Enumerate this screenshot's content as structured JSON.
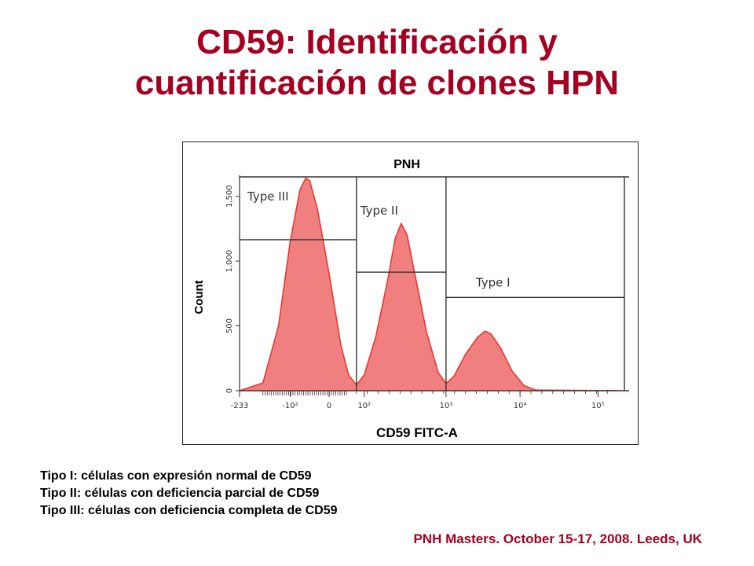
{
  "slide": {
    "title_line1": "CD59: Identificación y",
    "title_line2": "cuantificación de clones HPN",
    "captions": [
      "Tipo I: células con expresión normal de CD59",
      "Tipo II: células con deficiencia parcial de CD59",
      "Tipo III: células con deficiencia completa de CD59"
    ],
    "footer": "PNH Masters. October 15-17, 2008. Leeds, UK"
  },
  "colors": {
    "title": "#a50021",
    "histogram_fill": "#f08080",
    "histogram_line": "#e8382f",
    "gate_line": "#333333"
  },
  "chart_data": {
    "type": "area",
    "title": "PNH",
    "xlabel": "CD59 FITC-A",
    "ylabel": "Count",
    "xscale": "biexponential",
    "x_tick_labels": [
      "-233",
      "-10²",
      "0",
      "10²",
      "10³",
      "10⁴",
      "10⁵"
    ],
    "y_tick_labels": [
      "0",
      "500",
      "1,000",
      "1,500"
    ],
    "ylim": [
      0,
      1650
    ],
    "gates": [
      {
        "name": "Type III",
        "x_range": [
          "-233",
          "~10²·⁵"
        ]
      },
      {
        "name": "Type II",
        "x_range": [
          "~10²·⁵",
          "~10³·⁵"
        ]
      },
      {
        "name": "Type I",
        "x_range": [
          "~10³·⁵",
          "10⁵"
        ]
      }
    ],
    "series": [
      {
        "values_note": "peaks: Type III ~1600 near 10^1.5; Type II ~1280 near 10^2.8; Type I ~450 near 10^3.9",
        "points": [
          [
            0.0,
            0
          ],
          [
            0.06,
            60
          ],
          [
            0.1,
            500
          ],
          [
            0.13,
            1150
          ],
          [
            0.155,
            1550
          ],
          [
            0.17,
            1640
          ],
          [
            0.18,
            1620
          ],
          [
            0.2,
            1400
          ],
          [
            0.23,
            900
          ],
          [
            0.26,
            350
          ],
          [
            0.28,
            120
          ],
          [
            0.3,
            45
          ],
          [
            0.32,
            120
          ],
          [
            0.35,
            420
          ],
          [
            0.38,
            850
          ],
          [
            0.4,
            1180
          ],
          [
            0.415,
            1290
          ],
          [
            0.43,
            1200
          ],
          [
            0.45,
            900
          ],
          [
            0.48,
            450
          ],
          [
            0.51,
            140
          ],
          [
            0.53,
            55
          ],
          [
            0.55,
            110
          ],
          [
            0.58,
            280
          ],
          [
            0.61,
            410
          ],
          [
            0.63,
            460
          ],
          [
            0.645,
            440
          ],
          [
            0.67,
            330
          ],
          [
            0.7,
            150
          ],
          [
            0.73,
            40
          ],
          [
            0.76,
            5
          ],
          [
            1.0,
            0
          ]
        ]
      }
    ]
  }
}
